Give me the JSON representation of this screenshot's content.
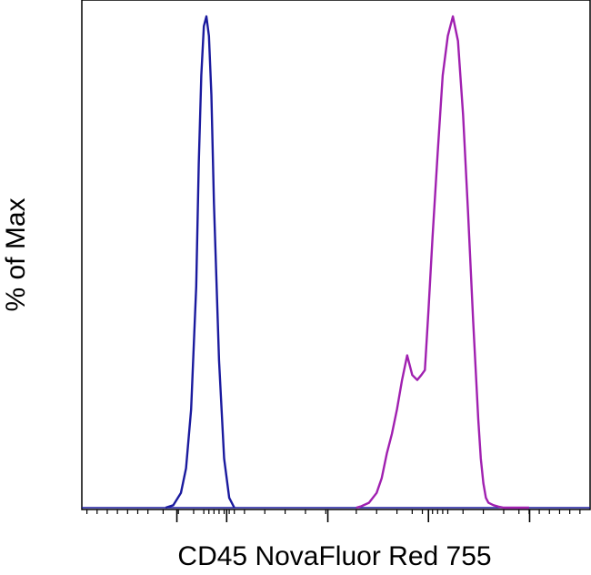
{
  "chart_data": {
    "type": "line",
    "xlabel": "CD45 NovaFluor Red 755",
    "ylabel": "% of Max",
    "xlim": [
      0,
      100
    ],
    "ylim": [
      0,
      100
    ],
    "grid": false,
    "x_scale": "biexponential",
    "minor_tick_x": [
      1,
      3,
      5,
      7,
      9,
      11,
      13,
      16,
      19,
      22,
      24,
      25,
      26,
      27,
      28,
      29,
      30,
      32,
      36,
      40,
      44,
      48,
      54,
      58,
      62,
      65,
      67,
      69,
      70,
      71,
      72,
      75,
      79,
      83,
      86,
      88,
      90,
      92,
      94,
      96,
      98
    ],
    "major_tick_x": [
      18.7,
      28.5,
      48.4,
      68.2,
      88.1
    ],
    "series": [
      {
        "color": "#1a1a9e",
        "x": [
          16.5,
          18.0,
          19.5,
          20.5,
          21.5,
          22.5,
          23.0,
          23.5,
          24.0,
          24.5,
          25.0,
          25.5,
          26.0,
          27.0,
          28.0,
          29.0,
          30.0
        ],
        "y": [
          0,
          0.5,
          3,
          8,
          20,
          45,
          70,
          88,
          98,
          100,
          96,
          84,
          62,
          30,
          10,
          2,
          0
        ]
      },
      {
        "color": "#a020b0",
        "x": [
          54,
          55,
          56.5,
          58,
          59,
          60,
          61,
          62,
          63,
          64,
          65,
          66,
          66.8,
          67.5,
          68.2,
          69,
          70,
          71,
          72,
          73,
          74,
          75,
          76,
          77,
          78,
          78.5,
          79,
          79.5,
          80,
          81,
          82,
          83,
          85,
          87,
          88
        ],
        "y": [
          0,
          0.3,
          1,
          3,
          6,
          11,
          15,
          20,
          26,
          31,
          27,
          26,
          27,
          28,
          40,
          55,
          72,
          88,
          96,
          100,
          95,
          80,
          60,
          38,
          18,
          10,
          5,
          2,
          1,
          0.5,
          0.2,
          0,
          0,
          0,
          0
        ]
      }
    ]
  }
}
